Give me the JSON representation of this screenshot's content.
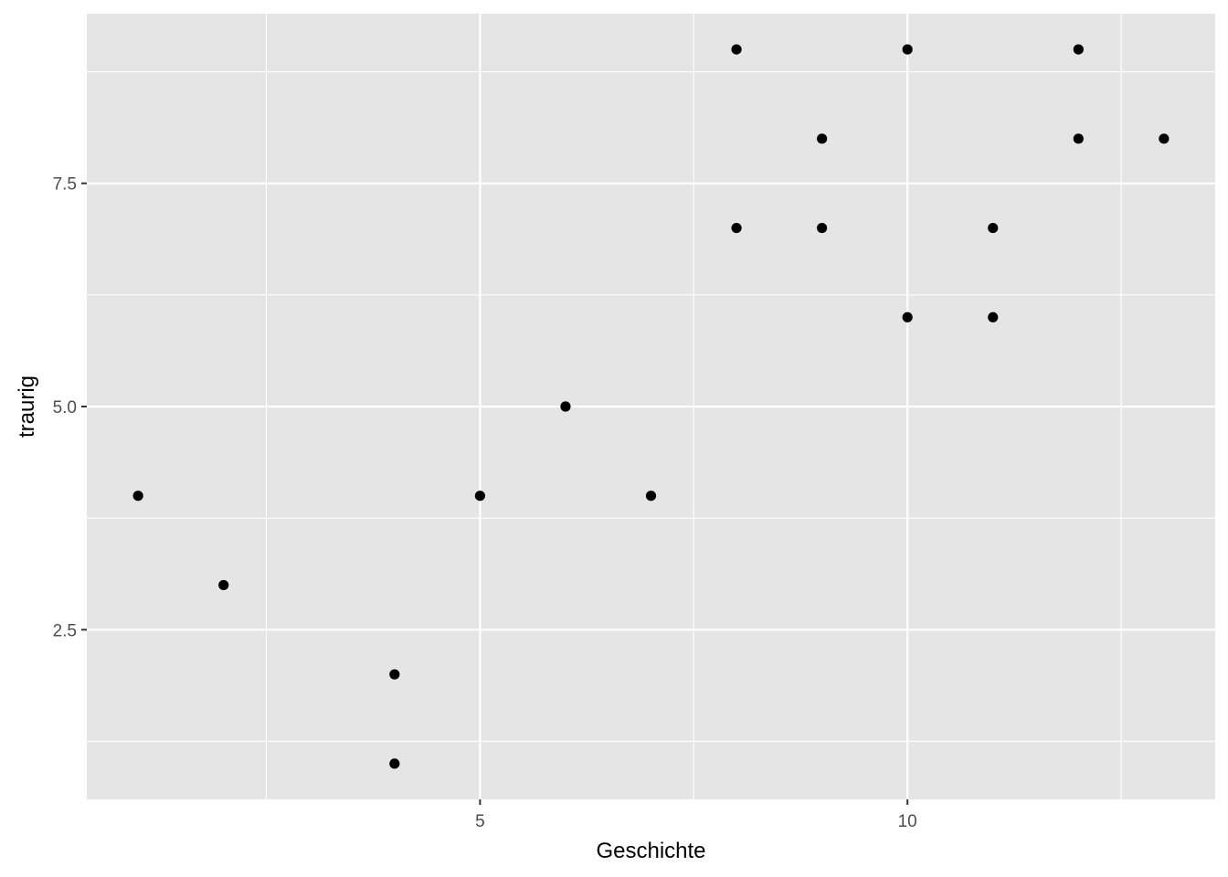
{
  "chart_data": {
    "type": "scatter",
    "title": "",
    "xlabel": "Geschichte",
    "ylabel": "traurig",
    "xlim": [
      0.4,
      13.6
    ],
    "ylim": [
      0.6,
      9.4
    ],
    "grid": true,
    "x_ticks": [
      {
        "value": 5,
        "label": "5"
      },
      {
        "value": 10,
        "label": "10"
      }
    ],
    "y_ticks": [
      {
        "value": 2.5,
        "label": "2.5"
      },
      {
        "value": 5.0,
        "label": "5.0"
      },
      {
        "value": 7.5,
        "label": "7.5"
      }
    ],
    "x_minor_breaks": [
      2.5,
      7.5,
      12.5
    ],
    "y_minor_breaks": [
      1.25,
      3.75,
      6.25,
      8.75
    ],
    "point_color": "#000000",
    "panel_color": "#e5e5e5",
    "grid_color": "#ffffff",
    "series": [
      {
        "points": [
          {
            "x": 1,
            "y": 4
          },
          {
            "x": 2,
            "y": 3
          },
          {
            "x": 4,
            "y": 2
          },
          {
            "x": 4,
            "y": 1
          },
          {
            "x": 5,
            "y": 4
          },
          {
            "x": 6,
            "y": 5
          },
          {
            "x": 7,
            "y": 4
          },
          {
            "x": 8,
            "y": 9
          },
          {
            "x": 8,
            "y": 7
          },
          {
            "x": 9,
            "y": 8
          },
          {
            "x": 9,
            "y": 7
          },
          {
            "x": 10,
            "y": 9
          },
          {
            "x": 10,
            "y": 6
          },
          {
            "x": 11,
            "y": 7
          },
          {
            "x": 11,
            "y": 6
          },
          {
            "x": 12,
            "y": 9
          },
          {
            "x": 12,
            "y": 8
          },
          {
            "x": 13,
            "y": 8
          }
        ]
      }
    ]
  }
}
